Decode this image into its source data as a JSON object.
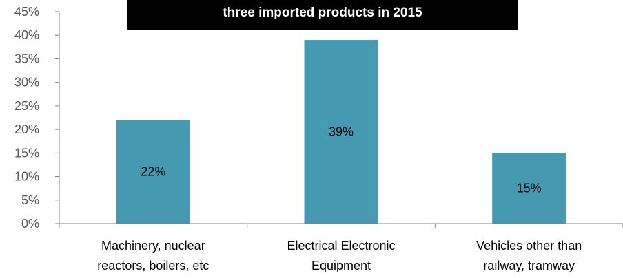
{
  "chart_data": {
    "type": "bar",
    "title": "three imported products in 2015",
    "categories": [
      [
        "Machinery, nuclear",
        "reactors, boilers, etc"
      ],
      [
        "Electrical Electronic",
        "Equipment"
      ],
      [
        "Vehicles other than",
        "railway, tramway"
      ]
    ],
    "values": [
      22,
      39,
      15
    ],
    "data_labels": [
      "22%",
      "39%",
      "15%"
    ],
    "ylim": [
      0,
      45
    ],
    "yticks": [
      0,
      5,
      10,
      15,
      20,
      25,
      30,
      35,
      40,
      45
    ],
    "ytick_labels": [
      "0%",
      "5%",
      "10%",
      "15%",
      "20%",
      "25%",
      "30%",
      "35%",
      "40%",
      "45%"
    ],
    "xlabel": "",
    "ylabel": "",
    "grid": false,
    "legend": "none",
    "colors": {
      "bar": "#4599B1",
      "title_background": "#000000",
      "title_text": "#FFFFFF",
      "axis": "#808080",
      "tick_text": "#595959"
    }
  }
}
